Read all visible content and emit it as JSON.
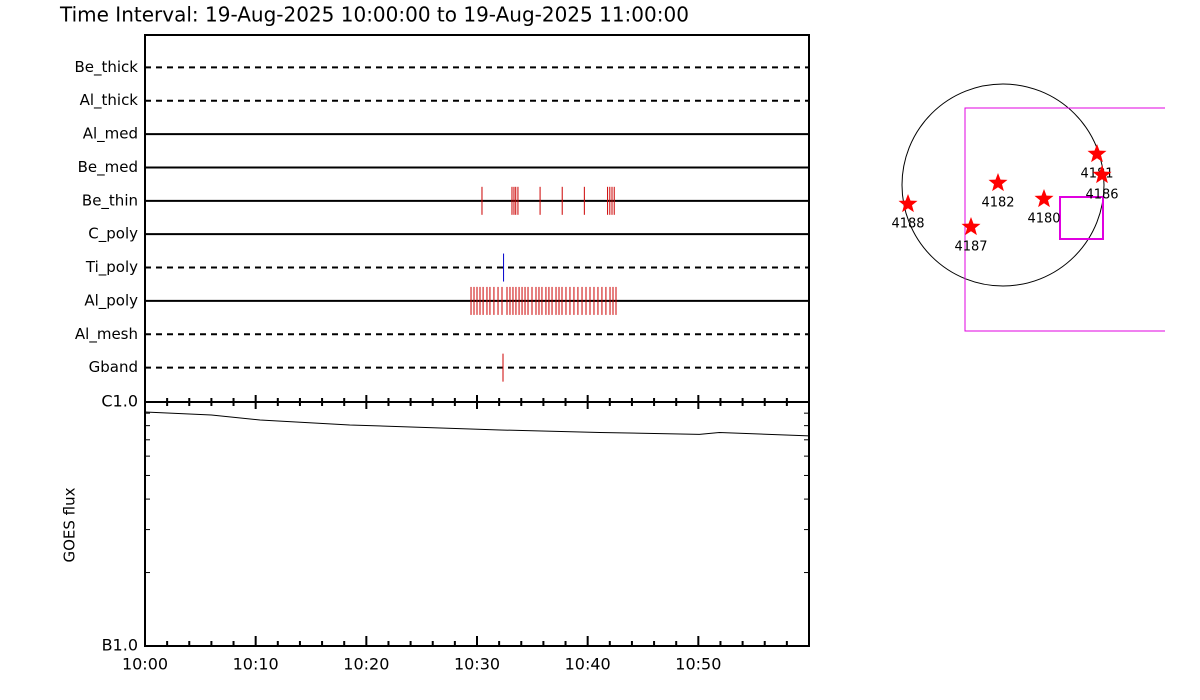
{
  "title": "Time Interval: 19-Aug-2025 10:00:00 to 19-Aug-2025 11:00:00",
  "chart_data": [
    {
      "type": "timeline",
      "xlim": [
        0,
        60
      ],
      "xticks": [
        {
          "value": 0,
          "label": "10:00"
        },
        {
          "value": 10,
          "label": "10:10"
        },
        {
          "value": 20,
          "label": "10:20"
        },
        {
          "value": 30,
          "label": "10:30"
        },
        {
          "value": 40,
          "label": "10:40"
        },
        {
          "value": 50,
          "label": "10:50"
        }
      ],
      "xminorticks": [
        2,
        4,
        6,
        8,
        12,
        14,
        16,
        18,
        22,
        24,
        26,
        28,
        32,
        34,
        36,
        38,
        42,
        44,
        46,
        48,
        52,
        54,
        56,
        58
      ],
      "rows": [
        {
          "name": "Be_thick",
          "style": "dashed",
          "color": "#cc0000",
          "events": []
        },
        {
          "name": "Al_thick",
          "style": "dashed",
          "color": "#cc0000",
          "events": []
        },
        {
          "name": "Al_med",
          "style": "solid",
          "color": "#cc0000",
          "events": []
        },
        {
          "name": "Be_med",
          "style": "solid",
          "color": "#cc0000",
          "events": []
        },
        {
          "name": "Be_thin",
          "style": "solid",
          "color": "#cc0000",
          "events": [
            30.45,
            33.16,
            33.34,
            33.5,
            33.7,
            35.7,
            37.7,
            39.7,
            41.8,
            42.0,
            42.2,
            42.4
          ]
        },
        {
          "name": "C_poly",
          "style": "solid",
          "color": "#cc0000",
          "events": []
        },
        {
          "name": "Ti_poly",
          "style": "dashed",
          "color": "#0000cc",
          "events": [
            32.4
          ]
        },
        {
          "name": "Al_poly",
          "style": "solid",
          "color": "#cc0000",
          "events": [
            29.46,
            29.73,
            30.0,
            30.27,
            30.55,
            30.9,
            31.17,
            31.53,
            31.9,
            32.26,
            32.71,
            32.98,
            33.25,
            33.52,
            33.8,
            34.07,
            34.34,
            34.61,
            34.97,
            35.33,
            35.6,
            35.87,
            36.23,
            36.5,
            36.78,
            37.14,
            37.41,
            37.68,
            38.04,
            38.4,
            38.76,
            39.12,
            39.49,
            39.85,
            40.21,
            40.57,
            40.93,
            41.29,
            41.65,
            42.02,
            42.29,
            42.56
          ]
        },
        {
          "name": "Al_mesh",
          "style": "dashed",
          "color": "#cc0000",
          "events": []
        },
        {
          "name": "Gband",
          "style": "dashed",
          "color": "#cc0000",
          "events": [
            32.35
          ]
        }
      ]
    },
    {
      "type": "line",
      "y_label": "GOES flux",
      "log_scale": true,
      "xlim": [
        0,
        60
      ],
      "ylim": [
        1e-07,
        1e-06
      ],
      "yticks": [
        {
          "value": 1e-06,
          "label": "C1.0"
        },
        {
          "value": 1e-07,
          "label": "B1.0"
        }
      ],
      "yminorticks": [
        2e-07,
        3e-07,
        4e-07,
        5e-07,
        6e-07,
        7e-07,
        8e-07,
        9e-07
      ],
      "color": "#000000",
      "x": [
        0,
        6,
        10.4,
        18.5,
        32.1,
        41.1,
        50.1,
        51.9,
        60
      ],
      "values": [
        9.1e-07,
        8.85e-07,
        8.44e-07,
        8.05e-07,
        7.68e-07,
        7.5e-07,
        7.37e-07,
        7.5e-07,
        7.26e-07
      ]
    }
  ],
  "map": {
    "regions": [
      "4188",
      "4187",
      "4182",
      "4180",
      "4181",
      "4186"
    ]
  }
}
